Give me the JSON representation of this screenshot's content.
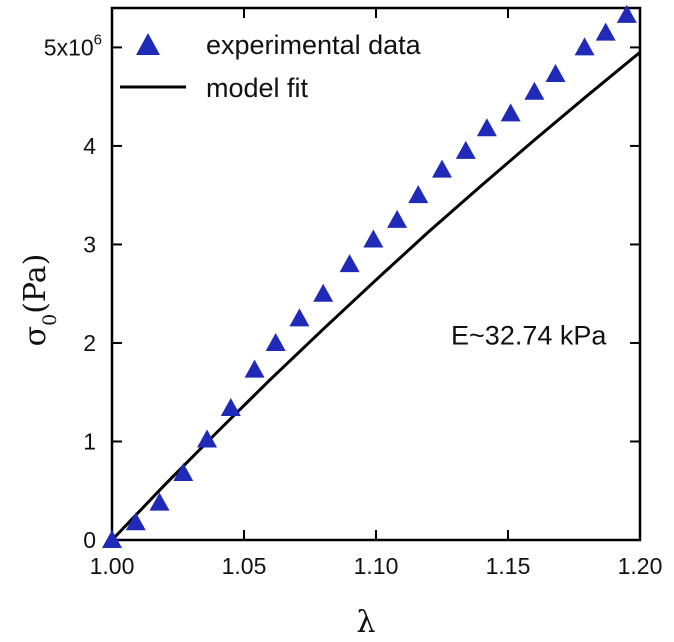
{
  "chart_data": {
    "type": "scatter",
    "xlabel": "λ",
    "ylabel_symbol": "σ",
    "ylabel_subscript": "0",
    "ylabel_unit": "(Pa)",
    "xlim": [
      1.0,
      1.2
    ],
    "ylim": [
      0,
      5400000
    ],
    "x_ticks": [
      1.0,
      1.05,
      1.1,
      1.15,
      1.2
    ],
    "x_tick_labels": [
      "1.00",
      "1.05",
      "1.10",
      "1.15",
      "1.20"
    ],
    "y_ticks": [
      0,
      1000000,
      2000000,
      3000000,
      4000000,
      5000000
    ],
    "y_tick_labels": [
      "0",
      "1",
      "2",
      "3",
      "4",
      "5x10"
    ],
    "y_top_exponent": "6",
    "grid": false,
    "legend_position": "top-left",
    "series": [
      {
        "name": "experimental data",
        "marker": "triangle",
        "color": "#1f2bb8",
        "x": [
          1.0,
          1.009,
          1.018,
          1.027,
          1.036,
          1.045,
          1.054,
          1.062,
          1.071,
          1.08,
          1.09,
          1.099,
          1.108,
          1.116,
          1.125,
          1.134,
          1.142,
          1.151,
          1.16,
          1.168,
          1.179,
          1.187,
          1.195
        ],
        "y": [
          0,
          180000,
          380000,
          680000,
          1020000,
          1340000,
          1730000,
          2000000,
          2250000,
          2500000,
          2800000,
          3050000,
          3250000,
          3500000,
          3760000,
          3950000,
          4180000,
          4330000,
          4550000,
          4730000,
          5000000,
          5150000,
          5330000
        ]
      },
      {
        "name": "model fit",
        "line": true,
        "color": "#000000",
        "x": [
          1.0,
          1.02,
          1.04,
          1.06,
          1.08,
          1.1,
          1.12,
          1.14,
          1.16,
          1.18,
          1.2
        ],
        "y": [
          0,
          560000,
          1100000,
          1630000,
          2140000,
          2640000,
          3130000,
          3600000,
          4060000,
          4510000,
          4950000
        ]
      }
    ],
    "annotations": [
      {
        "text": "E~32.74 kPa",
        "x": 1.136,
        "y": 2250000
      }
    ]
  }
}
